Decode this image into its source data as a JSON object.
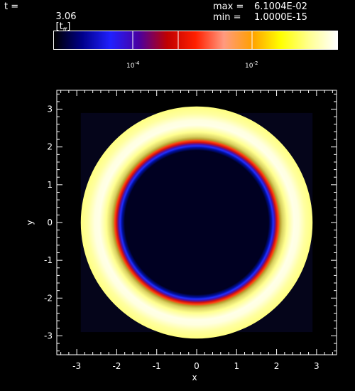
{
  "header": {
    "time_label": "t =",
    "time_value": "3.06",
    "time_unit": "[t",
    "time_unit_sub": "ff",
    "time_unit_close": "]",
    "max_label": "max =",
    "max_value": "6.1004E-02",
    "min_label": "min =",
    "min_value": "1.0000E-15"
  },
  "colorbar": {
    "labels": [
      {
        "base": "10",
        "exp": "-4"
      },
      {
        "base": "10",
        "exp": "-2"
      }
    ],
    "colors": [
      "#000000",
      "#00008a",
      "#2020ff",
      "#4a00a0",
      "#c00000",
      "#ff2000",
      "#ff9a80",
      "#ffa000",
      "#ffff00",
      "#ffff90",
      "#ffffff"
    ],
    "divider_color": "#ffffff"
  },
  "chart_data": {
    "type": "heatmap",
    "title": "",
    "xlabel": "x",
    "ylabel": "y",
    "xlim": [
      -3.5,
      3.5
    ],
    "ylim": [
      -3.5,
      3.5
    ],
    "x_ticks": [
      -3,
      -2,
      -1,
      0,
      1,
      2,
      3
    ],
    "y_ticks": [
      -3,
      -2,
      -1,
      0,
      1,
      2,
      3
    ],
    "x_tick_labels": [
      "-3",
      "-2",
      "-1",
      "0",
      "1",
      "2",
      "3"
    ],
    "y_tick_labels": [
      "-3",
      "-2",
      "-1",
      "0",
      "1",
      "2",
      "3"
    ],
    "grid": false,
    "rings": [
      {
        "radius": 1.9,
        "color": "#2030ff"
      },
      {
        "radius": 2.0,
        "color": "#d01010"
      },
      {
        "radius": 2.1,
        "color": "#b8a030"
      },
      {
        "radius": 2.5,
        "color": "#ffffe8"
      },
      {
        "radius": 2.9,
        "color": "#ffff80"
      }
    ],
    "interior_color": "#000022"
  }
}
